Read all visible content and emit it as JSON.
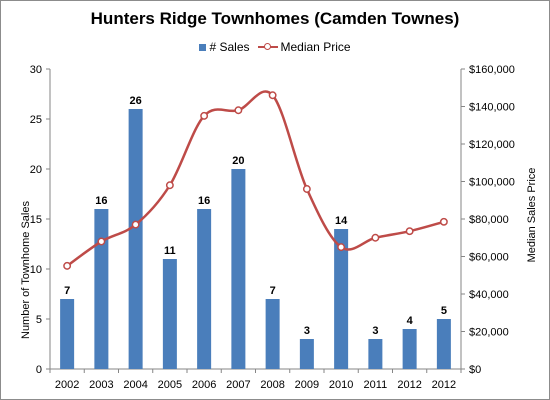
{
  "chart_data": {
    "type": "bar",
    "title": "Hunters Ridge Townhomes  (Camden Townes)",
    "categories": [
      "2002",
      "2003",
      "2004",
      "2005",
      "2006",
      "2007",
      "2008",
      "2009",
      "2010",
      "2011",
      "2012",
      "2012"
    ],
    "series": [
      {
        "name": "# Sales",
        "type": "bar",
        "axis": "left",
        "color": "#4a7ebb",
        "values": [
          7,
          16,
          26,
          11,
          16,
          20,
          7,
          3,
          14,
          3,
          4,
          5
        ],
        "labels": [
          "7",
          "16",
          "26",
          "11",
          "16",
          "20",
          "7",
          "3",
          "14",
          "3",
          "4",
          "5"
        ]
      },
      {
        "name": "Median Price",
        "type": "line",
        "axis": "right",
        "color": "#be4b48",
        "smooth": true,
        "values": [
          55000,
          68000,
          77000,
          98000,
          135000,
          138000,
          146000,
          96000,
          65000,
          70000,
          73500,
          78500
        ]
      }
    ],
    "y_left": {
      "label": "Number of Townhome Sales",
      "min": 0,
      "max": 30,
      "ticks": [
        0,
        5,
        10,
        15,
        20,
        25,
        30
      ],
      "tick_labels": [
        "0",
        "5",
        "10",
        "15",
        "20",
        "25",
        "30"
      ]
    },
    "y_right": {
      "label": "Median Sales Price",
      "min": 0,
      "max": 160000,
      "ticks": [
        0,
        20000,
        40000,
        60000,
        80000,
        100000,
        120000,
        140000,
        160000
      ],
      "tick_labels": [
        "$0",
        "$20,000",
        "$40,000",
        "$60,000",
        "$80,000",
        "$100,000",
        "$120,000",
        "$140,000",
        "$160,000"
      ]
    },
    "legend_position": "top",
    "grid": false
  }
}
